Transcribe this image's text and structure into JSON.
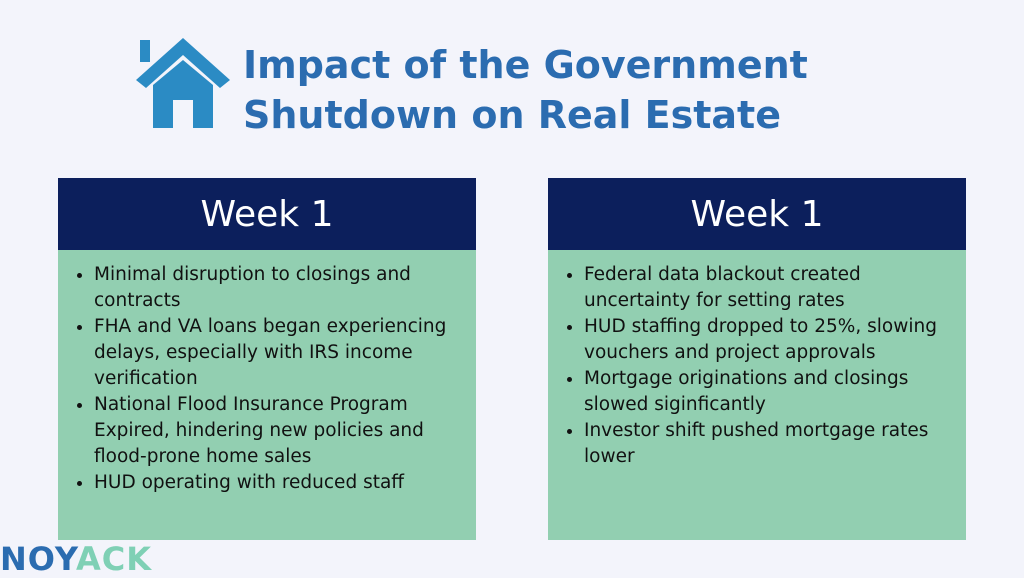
{
  "header": {
    "title_lines": [
      "Impact of the Government",
      "Shutdown on Real Estate"
    ]
  },
  "panels": [
    {
      "heading": "Week 1",
      "bullets": [
        "Minimal disruption to closings and contracts",
        "FHA and VA loans began experiencing delays, especially with IRS income verification",
        "National Flood Insurance Program Expired, hindering new policies and flood-prone home sales",
        "HUD operating with reduced staff"
      ]
    },
    {
      "heading": "Week 1",
      "bullets": [
        "Federal data blackout created uncertainty for setting rates",
        "HUD staffing dropped to 25%, slowing vouchers and project approvals",
        "Mortgage originations and closings slowed siginficantly",
        "Investor shift pushed mortgage rates lower"
      ]
    }
  ],
  "footer": {
    "logo": "NOYACK"
  }
}
